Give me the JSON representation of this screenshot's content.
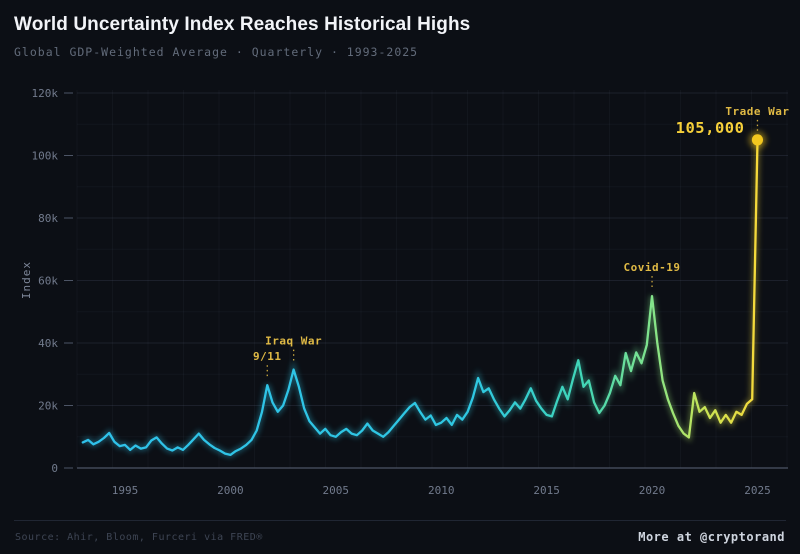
{
  "header": {
    "title": "World Uncertainty Index Reaches Historical Highs",
    "subtitle": "Global GDP-Weighted Average · Quarterly · 1993-2025"
  },
  "footer": {
    "source": "Source: Ahir, Bloom, Furceri via FRED®",
    "credit": "More at @cryptorand"
  },
  "colors": {
    "background": "#0c0f15",
    "grid_minor": "rgba(130,145,175,0.055)",
    "grid_major": "rgba(130,145,175,0.14)",
    "axis_line": "#4d5566",
    "tick_text": "#727b8d",
    "annotation_text": "#e0ba45",
    "annotation_value": "#f6d03a",
    "dotted_line": "#c9a73e",
    "marker": "#f2c71f",
    "line_gradient": [
      [
        "0%",
        "#2fc1ea"
      ],
      [
        "58%",
        "#2fc8e2"
      ],
      [
        "74%",
        "#41d6b7"
      ],
      [
        "84%",
        "#80e48d"
      ],
      [
        "92%",
        "#c8e456"
      ],
      [
        "100%",
        "#f6d93a"
      ]
    ]
  },
  "chart_data": {
    "type": "line",
    "title": "World Uncertainty Index Reaches Historical Highs",
    "subtitle": "Global GDP-Weighted Average · Quarterly · 1993-2025",
    "xlabel": "",
    "ylabel": "Index",
    "frequency": "quarterly",
    "x_start_year": 1993,
    "x_end_year": 2025,
    "ylim": [
      0,
      120000
    ],
    "grid": true,
    "legend_position": "none",
    "x_tick_years": [
      1995,
      2000,
      2005,
      2010,
      2015,
      2020,
      2025
    ],
    "x_tick_labels": [
      "1995",
      "2000",
      "2005",
      "2010",
      "2015",
      "2020",
      "2025"
    ],
    "y_tick_values": [
      0,
      20000,
      40000,
      60000,
      80000,
      100000,
      120000
    ],
    "y_tick_labels": [
      "0",
      "20k",
      "40k",
      "60k",
      "80k",
      "100k",
      "120k"
    ],
    "values": [
      8200,
      9000,
      7600,
      8400,
      9600,
      11200,
      8400,
      7000,
      7400,
      5800,
      7200,
      6200,
      6600,
      8800,
      9800,
      7800,
      6200,
      5600,
      6600,
      5800,
      7400,
      9200,
      11000,
      9000,
      7600,
      6400,
      5600,
      4600,
      4200,
      5400,
      6200,
      7400,
      9000,
      12000,
      18000,
      26500,
      21000,
      18000,
      20000,
      25000,
      31500,
      26000,
      19000,
      15000,
      13000,
      11000,
      12500,
      10500,
      10000,
      11500,
      12500,
      11000,
      10500,
      12000,
      14200,
      12000,
      11000,
      10000,
      11500,
      13500,
      15500,
      17500,
      19500,
      20800,
      18000,
      15500,
      16800,
      13800,
      14500,
      16000,
      13800,
      17000,
      15500,
      18000,
      22500,
      28800,
      24300,
      25500,
      22000,
      19000,
      16500,
      18500,
      21000,
      19000,
      22000,
      25500,
      21500,
      19000,
      17000,
      16500,
      21500,
      26000,
      22000,
      28500,
      34500,
      26000,
      28000,
      21000,
      17600,
      20000,
      24000,
      29500,
      26500,
      36800,
      31000,
      37000,
      33500,
      39400,
      55000,
      40000,
      28000,
      22000,
      17500,
      13500,
      11000,
      9800,
      24000,
      18000,
      19500,
      16000,
      18500,
      14500,
      17000,
      14500,
      18000,
      17000,
      20500,
      22000,
      105000
    ],
    "annotations": [
      {
        "label": "9/11",
        "year": 2001,
        "quarter": 4,
        "value": 26500
      },
      {
        "label": "Iraq War",
        "year": 2003,
        "quarter": 1,
        "value": 31500
      },
      {
        "label": "Covid-19",
        "year": 2020,
        "quarter": 1,
        "value": 55000
      },
      {
        "label": "Trade War",
        "year": 2025,
        "quarter": 1,
        "value": 105000,
        "value_label": "105,000",
        "has_marker": true
      }
    ]
  }
}
